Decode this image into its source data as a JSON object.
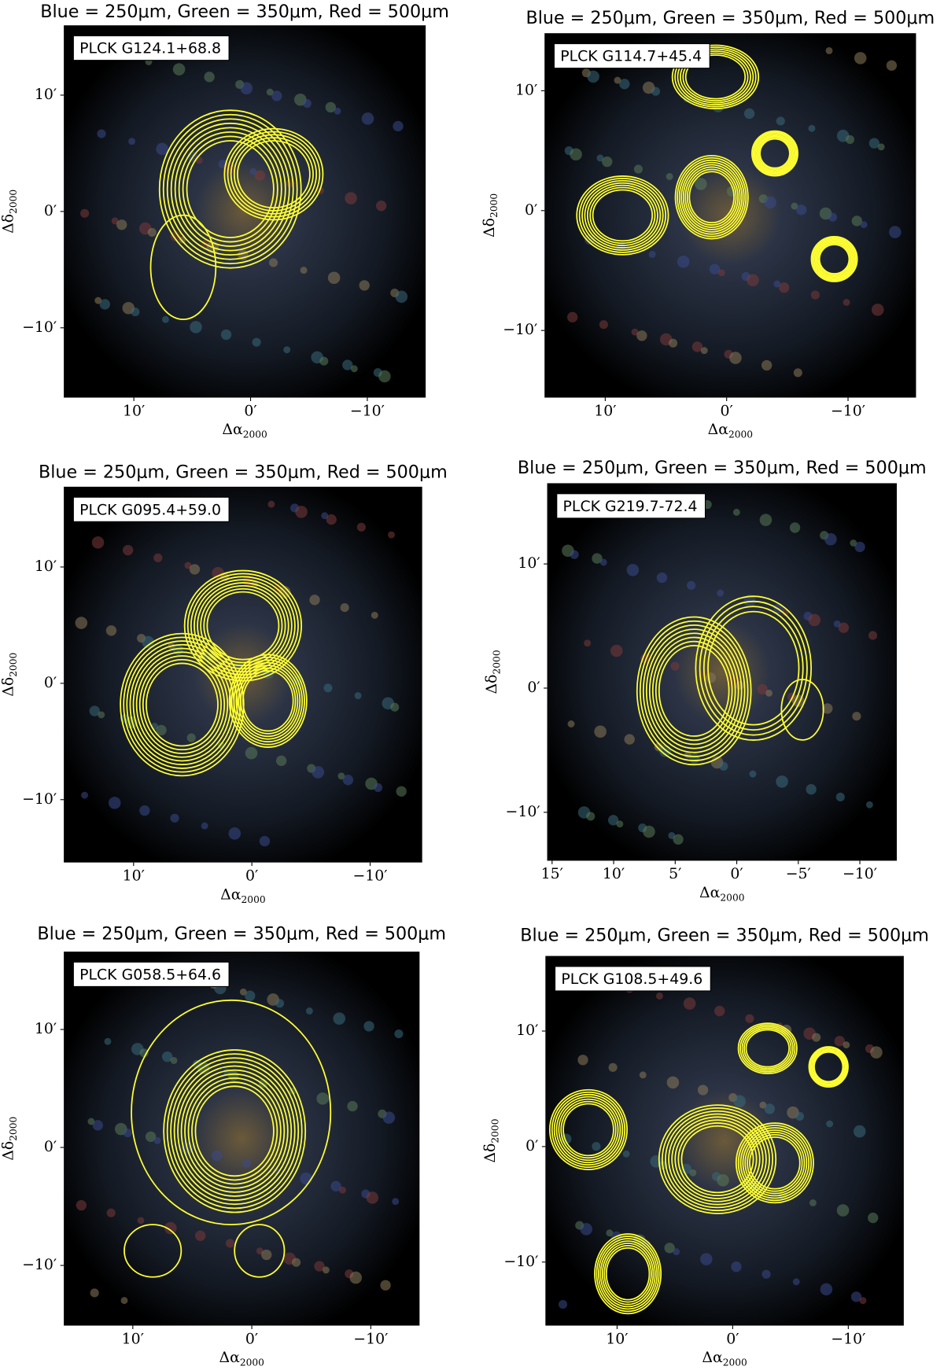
{
  "panels": [
    {
      "title": "Blue = 250μm, Green = 350μm, Red = 500μm",
      "source": "PLCK G124.1+68.8",
      "x_label": "Δα",
      "x_label_sub": "2000",
      "y_label": "Δδ",
      "y_label_sub": "2000",
      "xlim": [
        16,
        -15
      ],
      "ylim": [
        -16,
        16
      ],
      "x_ticks": [
        {
          "value": 10,
          "label": "10′"
        },
        {
          "value": 0,
          "label": "0′"
        },
        {
          "value": -10,
          "label": "−10′"
        }
      ],
      "y_ticks": [
        {
          "value": 10,
          "label": "10′"
        },
        {
          "value": 0,
          "label": "0′"
        },
        {
          "value": -10,
          "label": "−10′"
        }
      ]
    },
    {
      "title": "Blue = 250μm, Green = 350μm, Red = 500μm",
      "source": "PLCK G114.7+45.4",
      "x_label": "Δα",
      "x_label_sub": "2000",
      "y_label": "Δδ",
      "y_label_sub": "2000",
      "xlim": [
        15,
        -15.6
      ],
      "ylim": [
        -15.6,
        14.8
      ],
      "x_ticks": [
        {
          "value": 10,
          "label": "10′"
        },
        {
          "value": 0,
          "label": "0′"
        },
        {
          "value": -10,
          "label": "−10′"
        }
      ],
      "y_ticks": [
        {
          "value": 10,
          "label": "10′"
        },
        {
          "value": 0,
          "label": "0′"
        },
        {
          "value": -10,
          "label": "−10′"
        }
      ]
    },
    {
      "title": "Blue = 250μm, Green = 350μm, Red = 500μm",
      "source": "PLCK G095.4+59.0",
      "x_label": "Δα",
      "x_label_sub": "2000",
      "y_label": "Δδ",
      "y_label_sub": "2000",
      "xlim": [
        15.9,
        -14.4
      ],
      "ylim": [
        -15.4,
        16.9
      ],
      "x_ticks": [
        {
          "value": 10,
          "label": "10′"
        },
        {
          "value": 0,
          "label": "0′"
        },
        {
          "value": -10,
          "label": "−10′"
        }
      ],
      "y_ticks": [
        {
          "value": 10,
          "label": "10′"
        },
        {
          "value": 0,
          "label": "0′"
        },
        {
          "value": -10,
          "label": "−10′"
        }
      ]
    },
    {
      "title": "Blue = 250μm, Green = 350μm, Red = 500μm",
      "source": "PLCK G219.7-72.4",
      "x_label": "Δα",
      "x_label_sub": "2000",
      "y_label": "Δδ",
      "y_label_sub": "2000",
      "xlim": [
        15.4,
        -13
      ],
      "ylim": [
        -13.9,
        16.5
      ],
      "x_ticks": [
        {
          "value": 15,
          "label": "15′"
        },
        {
          "value": 10,
          "label": "10′"
        },
        {
          "value": 5,
          "label": "5′"
        },
        {
          "value": 0,
          "label": "0′"
        },
        {
          "value": -5,
          "label": "−5′"
        },
        {
          "value": -10,
          "label": "−10′"
        }
      ],
      "y_ticks": [
        {
          "value": 10,
          "label": "10′"
        },
        {
          "value": 0,
          "label": "0′"
        },
        {
          "value": -10,
          "label": "−10′"
        }
      ]
    },
    {
      "title": "Blue = 250μm, Green = 350μm, Red = 500μm",
      "source": "PLCK G058.5+64.6",
      "x_label": "Δα",
      "x_label_sub": "2000",
      "y_label": "Δδ",
      "y_label_sub": "2000",
      "xlim": [
        15.8,
        -14.1
      ],
      "ylim": [
        -15.1,
        16.6
      ],
      "x_ticks": [
        {
          "value": 10,
          "label": "10′"
        },
        {
          "value": 0,
          "label": "0′"
        },
        {
          "value": -10,
          "label": "−10′"
        }
      ],
      "y_ticks": [
        {
          "value": 10,
          "label": "10′"
        },
        {
          "value": 0,
          "label": "0′"
        },
        {
          "value": -10,
          "label": "−10′"
        }
      ]
    },
    {
      "title": "Blue = 250μm, Green = 350μm, Red = 500μm",
      "source": "PLCK G108.5+49.6",
      "x_label": "Δα",
      "x_label_sub": "2000",
      "y_label": "Δδ",
      "y_label_sub": "2000",
      "xlim": [
        16.2,
        -14.8
      ],
      "ylim": [
        -15.5,
        16.5
      ],
      "x_ticks": [
        {
          "value": 10,
          "label": "10′"
        },
        {
          "value": 0,
          "label": "0′"
        },
        {
          "value": -10,
          "label": "−10′"
        }
      ],
      "y_ticks": [
        {
          "value": 10,
          "label": "10′"
        },
        {
          "value": 0,
          "label": "0′"
        },
        {
          "value": -10,
          "label": "−10′"
        }
      ]
    }
  ]
}
